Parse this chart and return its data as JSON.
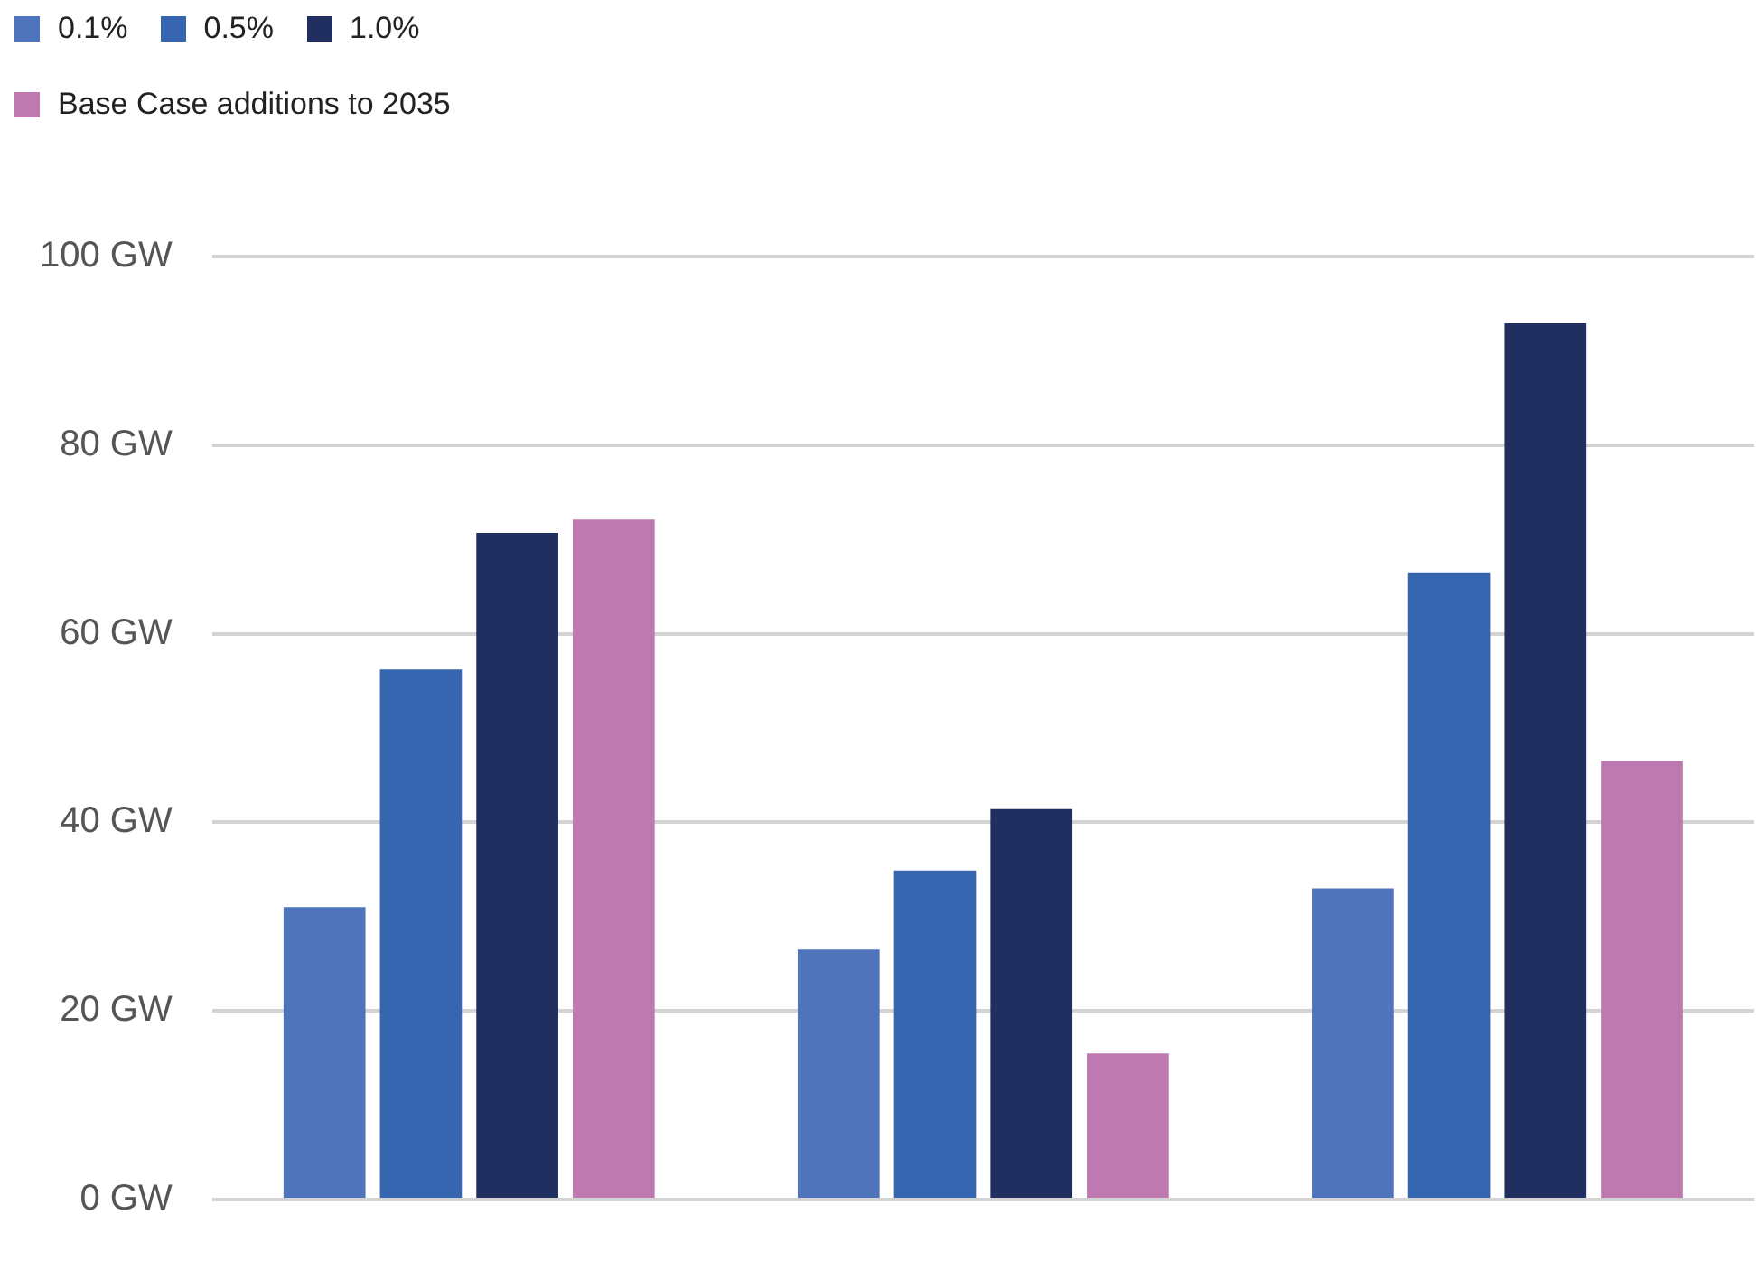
{
  "chart_data": {
    "type": "bar",
    "categories": [
      null,
      null,
      null
    ],
    "series": [
      {
        "name": "0.1%",
        "color": "#5074bb",
        "values": [
          31,
          26.5,
          33
        ]
      },
      {
        "name": "0.5%",
        "color": "#3766b0",
        "values": [
          56.2,
          34.9,
          66.5
        ]
      },
      {
        "name": "1.0%",
        "color": "#202e60",
        "values": [
          70.7,
          41.4,
          92.9
        ]
      },
      {
        "name": "Base Case additions to 2035",
        "color": "#be79b1",
        "values": [
          72.1,
          15.5,
          46.5
        ]
      }
    ],
    "ylim": [
      0,
      100
    ],
    "yticks": [
      {
        "value": 0,
        "label": "0 GW"
      },
      {
        "value": 20,
        "label": "20 GW"
      },
      {
        "value": 40,
        "label": "40 GW"
      },
      {
        "value": 60,
        "label": "60 GW"
      },
      {
        "value": 80,
        "label": "80 GW"
      },
      {
        "value": 100,
        "label": "100 GW"
      }
    ],
    "grid": "y",
    "legend": "top left"
  }
}
